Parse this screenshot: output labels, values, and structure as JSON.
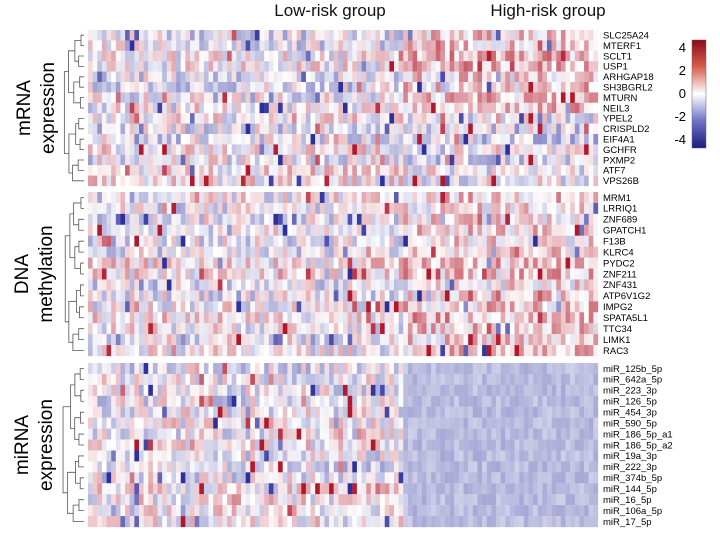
{
  "chart_data": {
    "type": "heatmap",
    "column_groups": [
      "Low-risk group",
      "High-risk group"
    ],
    "colorbar": {
      "ticks": [
        4,
        2,
        0,
        -2,
        -4
      ],
      "range": [
        -4,
        4
      ],
      "colors": {
        "high": "#b2182b",
        "mid": "#ffffff",
        "low": "#2c2f9c"
      }
    },
    "panels": [
      {
        "label_lines": [
          "mRNA",
          "expression"
        ],
        "rows": [
          "SLC25A24",
          "MTERF1",
          "SCLT1",
          "USP1",
          "ARHGAP18",
          "SH3BGRL2",
          "MTURN",
          "NEIL3",
          "YPEL2",
          "CRISPLD2",
          "EIF4A1",
          "GCHFR",
          "PXMP2",
          "ATF7",
          "VPS26B"
        ]
      },
      {
        "label_lines": [
          "DNA",
          "methylation"
        ],
        "rows": [
          "MRM1",
          "LRRIQ1",
          "ZNF689",
          "GPATCH1",
          "F13B",
          "KLRC4",
          "PYDC2",
          "ZNF211",
          "ZNF431",
          "ATP6V1G2",
          "IMPG2",
          "SPATA5L1",
          "TTC34",
          "LIMK1",
          "RAC3"
        ]
      },
      {
        "label_lines": [
          "miRNA",
          "expression"
        ],
        "rows": [
          "miR_125b_5p",
          "miR_642a_5p",
          "miR_223_3p",
          "miR_126_5p",
          "miR_454_3p",
          "miR_590_5p",
          "miR_186_5p_a1",
          "miR_186_5p_a2",
          "miR_19a_3p",
          "miR_222_3p",
          "miR_374b_5p",
          "miR_144_5p",
          "miR_16_5p",
          "miR_106a_5p",
          "miR_17_5p"
        ]
      }
    ]
  }
}
